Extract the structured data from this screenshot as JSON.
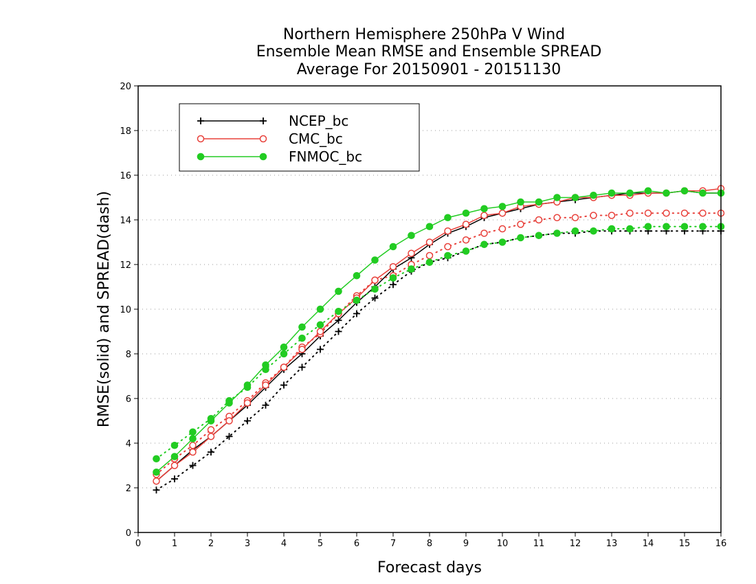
{
  "chart_data": {
    "type": "line",
    "title": [
      "Northern Hemisphere 250hPa V Wind",
      "Ensemble Mean RMSE and Ensemble SPREAD",
      "Average For 20150901 - 20151130"
    ],
    "xlabel": "Forecast days",
    "ylabel": "RMSE(solid) and SPREAD(dash)",
    "xlim": [
      0,
      16
    ],
    "ylim": [
      0,
      20
    ],
    "xticks": [
      0,
      1,
      2,
      3,
      4,
      5,
      6,
      7,
      8,
      9,
      10,
      11,
      12,
      13,
      14,
      15,
      16
    ],
    "yticks": [
      0,
      2,
      4,
      6,
      8,
      10,
      12,
      14,
      16,
      18,
      20
    ],
    "grid": "horizontal dotted",
    "legend_position": "top-left",
    "x": [
      0.5,
      1,
      1.5,
      2,
      2.5,
      3,
      3.5,
      4,
      4.5,
      5,
      5.5,
      6,
      6.5,
      7,
      7.5,
      8,
      8.5,
      9,
      9.5,
      10,
      10.5,
      11,
      11.5,
      12,
      12.5,
      13,
      13.5,
      14,
      14.5,
      15,
      15.5,
      16
    ],
    "series": [
      {
        "name": "NCEP_bc",
        "color": "#000000",
        "marker": "plus",
        "rmse": [
          2.3,
          3.0,
          3.7,
          4.3,
          5.0,
          5.7,
          6.5,
          7.3,
          8.0,
          8.8,
          9.5,
          10.3,
          11.0,
          11.8,
          12.3,
          12.9,
          13.4,
          13.7,
          14.1,
          14.3,
          14.5,
          14.7,
          14.8,
          14.9,
          15.0,
          15.1,
          15.2,
          15.2,
          15.2,
          15.3,
          15.2,
          15.2
        ],
        "spread": [
          1.9,
          2.4,
          3.0,
          3.6,
          4.3,
          5.0,
          5.7,
          6.6,
          7.4,
          8.2,
          9.0,
          9.8,
          10.5,
          11.1,
          11.7,
          12.1,
          12.3,
          12.6,
          12.9,
          13.0,
          13.2,
          13.3,
          13.4,
          13.4,
          13.5,
          13.5,
          13.5,
          13.5,
          13.5,
          13.5,
          13.5,
          13.5
        ]
      },
      {
        "name": "CMC_bc",
        "color": "#e8403a",
        "marker": "open-circle",
        "rmse": [
          2.3,
          3.0,
          3.6,
          4.3,
          5.0,
          5.8,
          6.6,
          7.4,
          8.2,
          9.0,
          9.8,
          10.5,
          11.3,
          11.9,
          12.5,
          13.0,
          13.5,
          13.8,
          14.2,
          14.3,
          14.6,
          14.7,
          14.8,
          15.0,
          15.0,
          15.1,
          15.1,
          15.2,
          15.2,
          15.3,
          15.3,
          15.4
        ],
        "spread": [
          2.6,
          3.3,
          3.9,
          4.6,
          5.2,
          5.9,
          6.7,
          7.4,
          8.3,
          8.9,
          9.8,
          10.6,
          11.3,
          11.5,
          12.0,
          12.4,
          12.8,
          13.1,
          13.4,
          13.6,
          13.8,
          14.0,
          14.1,
          14.1,
          14.2,
          14.2,
          14.3,
          14.3,
          14.3,
          14.3,
          14.3,
          14.3
        ]
      },
      {
        "name": "FNMOC_bc",
        "color": "#22cc22",
        "marker": "filled-circle",
        "rmse": [
          2.7,
          3.4,
          4.2,
          5.0,
          5.8,
          6.6,
          7.5,
          8.3,
          9.2,
          10.0,
          10.8,
          11.5,
          12.2,
          12.8,
          13.3,
          13.7,
          14.1,
          14.3,
          14.5,
          14.6,
          14.8,
          14.8,
          15.0,
          15.0,
          15.1,
          15.2,
          15.2,
          15.3,
          15.2,
          15.3,
          15.2,
          15.2
        ],
        "spread": [
          3.3,
          3.9,
          4.5,
          5.1,
          5.9,
          6.5,
          7.3,
          8.0,
          8.7,
          9.3,
          9.9,
          10.4,
          10.9,
          11.4,
          11.8,
          12.1,
          12.4,
          12.6,
          12.9,
          13.0,
          13.2,
          13.3,
          13.4,
          13.5,
          13.5,
          13.6,
          13.6,
          13.7,
          13.7,
          13.7,
          13.7,
          13.7
        ]
      }
    ]
  }
}
